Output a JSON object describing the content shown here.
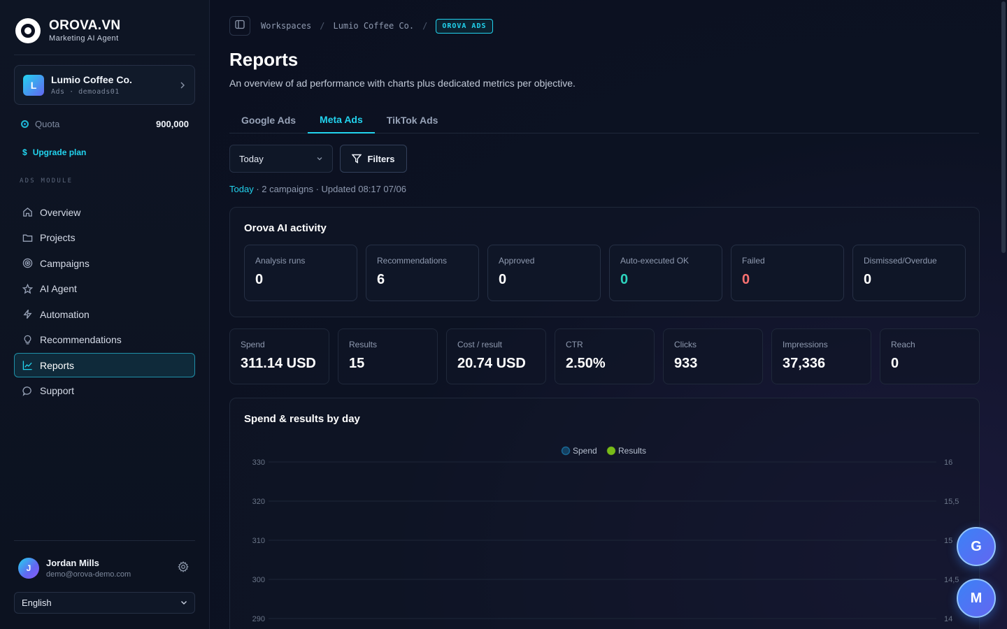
{
  "brand": {
    "name": "OROVA.VN",
    "subtitle": "Marketing AI Agent"
  },
  "workspace": {
    "initial": "L",
    "name": "Lumio Coffee Co.",
    "meta": "Ads · demoads01"
  },
  "quota": {
    "label": "Quota",
    "value": "900,000"
  },
  "upgrade_label": "Upgrade plan",
  "section_label": "ADS MODULE",
  "nav": [
    {
      "label": "Overview",
      "icon": "home-icon"
    },
    {
      "label": "Projects",
      "icon": "folder-icon"
    },
    {
      "label": "Campaigns",
      "icon": "target-icon"
    },
    {
      "label": "AI Agent",
      "icon": "star-icon"
    },
    {
      "label": "Automation",
      "icon": "bolt-icon"
    },
    {
      "label": "Recommendations",
      "icon": "lightbulb-icon"
    },
    {
      "label": "Reports",
      "icon": "chart-line-icon",
      "active": true
    },
    {
      "label": "Support",
      "icon": "chat-icon"
    }
  ],
  "user": {
    "initial": "J",
    "name": "Jordan Mills",
    "email": "demo@orova-demo.com"
  },
  "language": "English",
  "breadcrumbs": [
    "Workspaces",
    "Lumio Coffee Co.",
    "OROVA ADS"
  ],
  "page": {
    "title": "Reports",
    "description": "An overview of ad performance with charts plus dedicated metrics per objective."
  },
  "tabs": [
    {
      "label": "Google Ads"
    },
    {
      "label": "Meta Ads",
      "active": true
    },
    {
      "label": "TikTok Ads"
    }
  ],
  "filter": {
    "range": "Today",
    "filters_label": "Filters"
  },
  "meta_line": {
    "range": "Today",
    "rest": " · 2 campaigns · Updated 08:17 07/06"
  },
  "ai_activity": {
    "title": "Orova AI activity",
    "cards": [
      {
        "label": "Analysis runs",
        "value": "0"
      },
      {
        "label": "Recommendations",
        "value": "6"
      },
      {
        "label": "Approved",
        "value": "0"
      },
      {
        "label": "Auto-executed OK",
        "value": "0",
        "tone": "green"
      },
      {
        "label": "Failed",
        "value": "0",
        "tone": "red"
      },
      {
        "label": "Dismissed/Overdue",
        "value": "0"
      }
    ]
  },
  "kpis": [
    {
      "label": "Spend",
      "value": "311.14 USD"
    },
    {
      "label": "Results",
      "value": "15"
    },
    {
      "label": "Cost / result",
      "value": "20.74 USD"
    },
    {
      "label": "CTR",
      "value": "2.50%"
    },
    {
      "label": "Clicks",
      "value": "933"
    },
    {
      "label": "Impressions",
      "value": "37,336"
    },
    {
      "label": "Reach",
      "value": "0"
    }
  ],
  "chart_title": "Spend & results by day",
  "chart_data": {
    "type": "line",
    "title": "Spend & results by day",
    "legend": [
      "Spend",
      "Results"
    ],
    "legend_position": "top-center",
    "series_colors": {
      "Spend": "#1e90c8",
      "Results": "#84cc16"
    },
    "y_left_ticks": [
      "330",
      "320",
      "310",
      "300",
      "290"
    ],
    "y_right_ticks": [
      "16",
      "15,5",
      "15",
      "14,5",
      "14"
    ],
    "grid": true
  },
  "fabs": [
    "G",
    "M"
  ],
  "colors": {
    "accent": "#22d3ee",
    "green": "#2dd4bf",
    "red": "#f87171",
    "bg": "#0b1020"
  }
}
